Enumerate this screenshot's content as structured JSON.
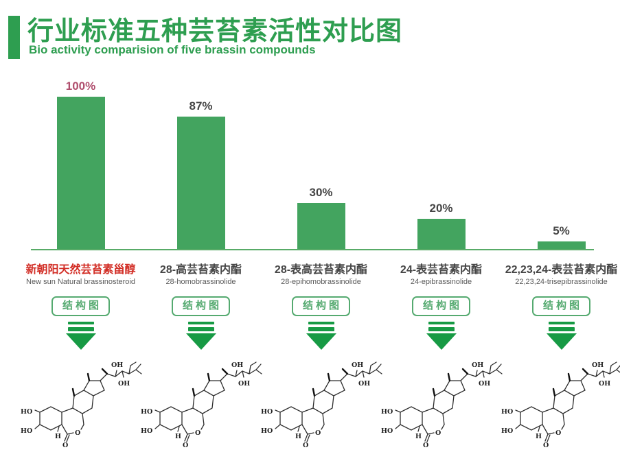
{
  "header": {
    "title": "行业标准五种芸苔素活性对比图",
    "subtitle": "Bio activity comparision of five brassin compounds"
  },
  "chart_data": {
    "type": "bar",
    "title": "行业标准五种芸苔素活性对比图",
    "subtitle": "Bio activity comparision of five brassin compounds",
    "categories": [
      "新朝阳天然芸苔素甾醇",
      "28-高芸苔素内酯",
      "28-表高芸苔素内酯",
      "24-表芸苔素内酯",
      "22,23,24-表芸苔素内酯"
    ],
    "categories_en": [
      "New sun Natural brassinosteroid",
      "28-homobrassinolide",
      "28-epihomobrassinolide",
      "24-epibrassinolide",
      "22,23,24-trisepibrassinolide"
    ],
    "values": [
      100,
      87,
      30,
      20,
      5
    ],
    "value_labels": [
      "100%",
      "87%",
      "30%",
      "20%",
      "5%"
    ],
    "ylim": [
      0,
      100
    ],
    "grid": false,
    "legend": false,
    "bar_color": "#43a45f",
    "highlight_index": 0
  },
  "columns": [
    {
      "value_label": "100%",
      "name_cn": "新朝阳天然芸苔素甾醇",
      "name_en": "New sun Natural brassinosteroid",
      "button_label": "结构图"
    },
    {
      "value_label": "87%",
      "name_cn": "28-高芸苔素内酯",
      "name_en": "28-homobrassinolide",
      "button_label": "结构图"
    },
    {
      "value_label": "30%",
      "name_cn": "28-表高芸苔素内酯",
      "name_en": "28-epihomobrassinolide",
      "button_label": "结构图"
    },
    {
      "value_label": "20%",
      "name_cn": "24-表芸苔素内酯",
      "name_en": "24-epibrassinolide",
      "button_label": "结构图"
    },
    {
      "value_label": "5%",
      "name_cn": "22,23,24-表芸苔素内酯",
      "name_en": "22,23,24-trisepibrassinolide",
      "button_label": "结构图"
    }
  ],
  "molecule": {
    "labels": {
      "ho_top": "HO",
      "ho_bottom": "HO",
      "h": "H",
      "o_carbonyl": "O",
      "oh_chain_top": "OH",
      "oh_chain_bottom": "OH"
    }
  },
  "colors": {
    "title-green": "#2e9e50",
    "bar-green": "#43a45f",
    "baseline-green": "#58ab67",
    "arrow-green": "#179a44",
    "button-green": "#55aa70",
    "highlight-red": "#d22e26",
    "value-rose": "#b04f6e",
    "label-dark": "#454545",
    "label-gray": "#5a5a5a"
  }
}
